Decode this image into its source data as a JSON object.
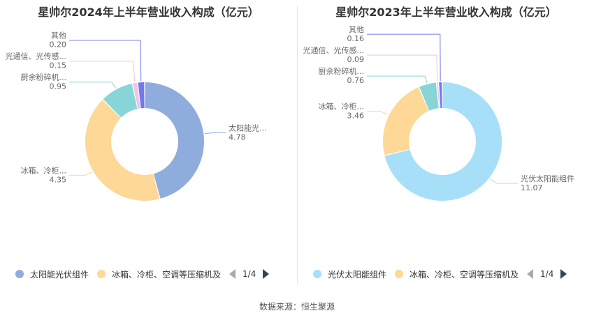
{
  "chart_data": [
    {
      "type": "pie",
      "title": "星帅尔2024年上半年营业收入构成（亿元）",
      "slices": [
        {
          "name": "太阳能光伏组件",
          "value": 4.78,
          "color": "#8eaddc"
        },
        {
          "name": "冰箱、冷柜、空调等压缩机及",
          "value": 4.35,
          "color": "#fdd896"
        },
        {
          "name": "厨余粉碎机",
          "value": 0.95,
          "color": "#88d5d8"
        },
        {
          "name": "光通信、光传感",
          "value": 0.15,
          "color": "#f1c4e3"
        },
        {
          "name": "其他",
          "value": 0.2,
          "color": "#7477ee"
        }
      ],
      "labels": [
        {
          "text": "太阳能光...",
          "value": "4.78"
        },
        {
          "text": "冰箱、冷柜...",
          "value": "4.35"
        },
        {
          "text": "厨余粉碎机...",
          "value": "0.95"
        },
        {
          "text": "光通信、光传感...",
          "value": "0.15"
        },
        {
          "text": "其他",
          "value": "0.20"
        }
      ],
      "legend": {
        "items": [
          "太阳能光伏组件",
          "冰箱、冷柜、空调等压缩机及"
        ],
        "page": "1/4"
      }
    },
    {
      "type": "pie",
      "title": "星帅尔2023年上半年营业收入构成（亿元）",
      "slices": [
        {
          "name": "光伏太阳能组件",
          "value": 11.07,
          "color": "#a8dff8"
        },
        {
          "name": "冰箱、冷柜、空调等压缩机及",
          "value": 3.46,
          "color": "#fdd896"
        },
        {
          "name": "厨余粉碎机",
          "value": 0.76,
          "color": "#88d5d8"
        },
        {
          "name": "光通信、光传感",
          "value": 0.09,
          "color": "#f1c4e3"
        },
        {
          "name": "其他",
          "value": 0.16,
          "color": "#7477ee"
        }
      ],
      "labels": [
        {
          "text": "光伏太阳能组件",
          "value": "11.07"
        },
        {
          "text": "冰箱、冷柜...",
          "value": "3.46"
        },
        {
          "text": "厨余粉碎机...",
          "value": "0.76"
        },
        {
          "text": "光通信、光传感...",
          "value": "0.09"
        },
        {
          "text": "其他",
          "value": "0.16"
        }
      ],
      "legend": {
        "items": [
          "光伏太阳能组件",
          "冰箱、冷柜、空调等压缩机及"
        ],
        "page": "1/4"
      }
    }
  ],
  "source": "数据来源：恒生聚源"
}
